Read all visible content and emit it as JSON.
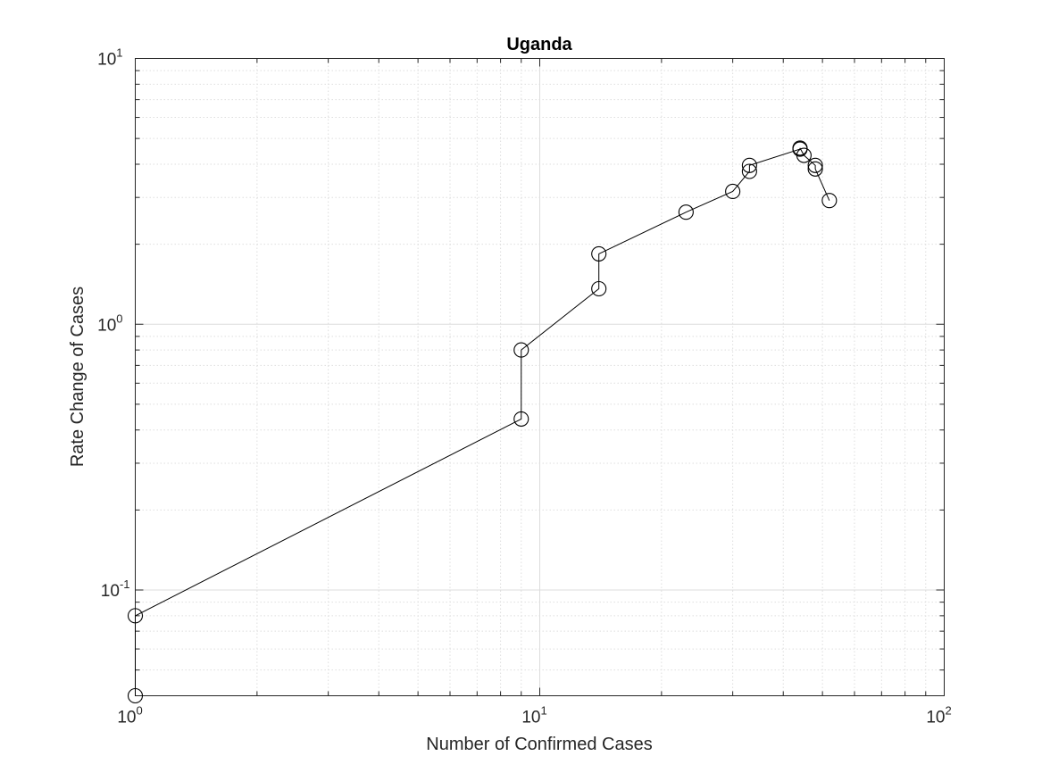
{
  "chart_data": {
    "type": "line",
    "title": "Uganda",
    "xlabel": "Number of Confirmed Cases",
    "ylabel": "Rate Change of Cases",
    "x_scale": "log",
    "y_scale": "log",
    "xlim": [
      1,
      100
    ],
    "ylim": [
      0.04,
      10
    ],
    "grid": true,
    "x_ticks": [
      {
        "value": 1,
        "base": "10",
        "exp": "0"
      },
      {
        "value": 10,
        "base": "10",
        "exp": "1"
      },
      {
        "value": 100,
        "base": "10",
        "exp": "2"
      }
    ],
    "y_ticks": [
      {
        "value": 0.1,
        "base": "10",
        "exp": "-1"
      },
      {
        "value": 1,
        "base": "10",
        "exp": "0"
      },
      {
        "value": 10,
        "base": "10",
        "exp": "1"
      }
    ],
    "series": [
      {
        "color": "#000000",
        "marker": "circle-open",
        "points": [
          {
            "x": 1,
            "y": 0.04
          },
          {
            "x": 1,
            "y": 0.08
          },
          {
            "x": 9,
            "y": 0.44
          },
          {
            "x": 9,
            "y": 0.8
          },
          {
            "x": 14,
            "y": 1.36
          },
          {
            "x": 14,
            "y": 1.84
          },
          {
            "x": 23,
            "y": 2.64
          },
          {
            "x": 30,
            "y": 3.16
          },
          {
            "x": 33,
            "y": 3.76
          },
          {
            "x": 33,
            "y": 3.96
          },
          {
            "x": 44,
            "y": 4.56
          },
          {
            "x": 44,
            "y": 4.6
          },
          {
            "x": 45,
            "y": 4.32
          },
          {
            "x": 48,
            "y": 3.96
          },
          {
            "x": 48,
            "y": 3.84
          },
          {
            "x": 52,
            "y": 2.92
          }
        ]
      }
    ]
  }
}
